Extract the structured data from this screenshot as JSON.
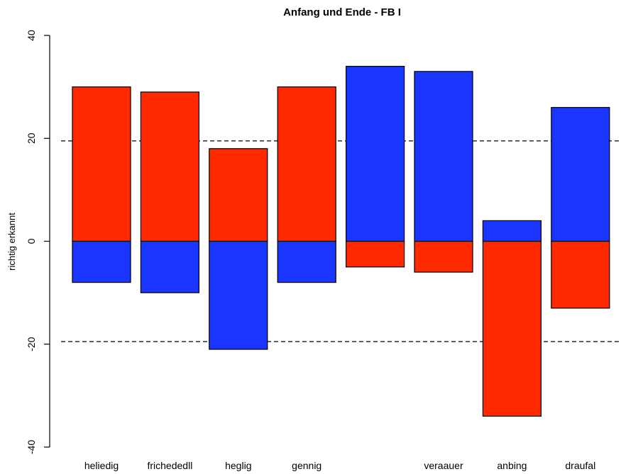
{
  "chart_data": {
    "type": "bar",
    "title": "Anfang und Ende - FB I",
    "xlabel": "",
    "ylabel": "richtig erkannt",
    "ylim": [
      -40,
      40
    ],
    "yticks": [
      -40,
      -20,
      0,
      20,
      40
    ],
    "categories": [
      "heliedig",
      "frichededll",
      "heglig",
      "gennig",
      "",
      "veraauer",
      "anbing",
      "draufal"
    ],
    "series": [
      {
        "color": "#ff2a00",
        "values": [
          30,
          29,
          18,
          30,
          -5,
          -6,
          -34,
          -13
        ]
      },
      {
        "color": "#1a35ff",
        "values": [
          -8,
          -10,
          -21,
          -8,
          34,
          33,
          4,
          26
        ]
      }
    ],
    "reference_lines": [
      19.5,
      -19.5
    ],
    "grid": false,
    "legend": "none"
  }
}
